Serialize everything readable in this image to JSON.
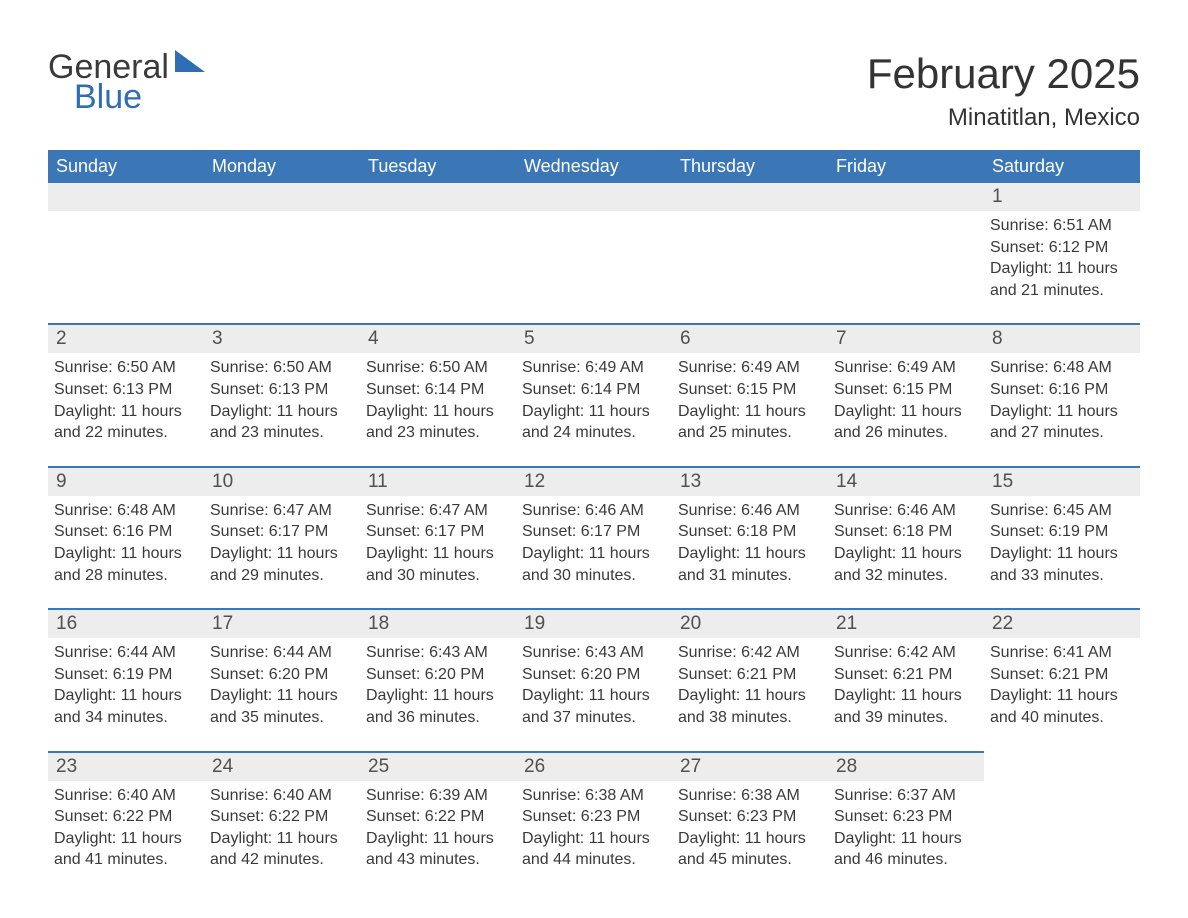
{
  "brand": {
    "word1": "General",
    "word2": "Blue",
    "tri_color": "#2f6eb5"
  },
  "title": {
    "month": "February 2025",
    "location": "Minatitlan, Mexico"
  },
  "colors": {
    "header_bg": "#3b77b7",
    "header_text": "#ffffff",
    "rule": "#3b77b7",
    "daynum_bg": "#ededed",
    "body_text": "#3a3a3a",
    "page_bg": "#ffffff"
  },
  "typography": {
    "month_title_size": 42,
    "location_size": 24,
    "dow_size": 18,
    "daynum_size": 19,
    "detail_size": 16,
    "logo_size": 34
  },
  "dow": [
    "Sunday",
    "Monday",
    "Tuesday",
    "Wednesday",
    "Thursday",
    "Friday",
    "Saturday"
  ],
  "weeks": [
    [
      null,
      null,
      null,
      null,
      null,
      null,
      {
        "n": "1",
        "sr": "Sunrise: 6:51 AM",
        "ss": "Sunset: 6:12 PM",
        "dl1": "Daylight: 11 hours",
        "dl2": "and 21 minutes."
      }
    ],
    [
      {
        "n": "2",
        "sr": "Sunrise: 6:50 AM",
        "ss": "Sunset: 6:13 PM",
        "dl1": "Daylight: 11 hours",
        "dl2": "and 22 minutes."
      },
      {
        "n": "3",
        "sr": "Sunrise: 6:50 AM",
        "ss": "Sunset: 6:13 PM",
        "dl1": "Daylight: 11 hours",
        "dl2": "and 23 minutes."
      },
      {
        "n": "4",
        "sr": "Sunrise: 6:50 AM",
        "ss": "Sunset: 6:14 PM",
        "dl1": "Daylight: 11 hours",
        "dl2": "and 23 minutes."
      },
      {
        "n": "5",
        "sr": "Sunrise: 6:49 AM",
        "ss": "Sunset: 6:14 PM",
        "dl1": "Daylight: 11 hours",
        "dl2": "and 24 minutes."
      },
      {
        "n": "6",
        "sr": "Sunrise: 6:49 AM",
        "ss": "Sunset: 6:15 PM",
        "dl1": "Daylight: 11 hours",
        "dl2": "and 25 minutes."
      },
      {
        "n": "7",
        "sr": "Sunrise: 6:49 AM",
        "ss": "Sunset: 6:15 PM",
        "dl1": "Daylight: 11 hours",
        "dl2": "and 26 minutes."
      },
      {
        "n": "8",
        "sr": "Sunrise: 6:48 AM",
        "ss": "Sunset: 6:16 PM",
        "dl1": "Daylight: 11 hours",
        "dl2": "and 27 minutes."
      }
    ],
    [
      {
        "n": "9",
        "sr": "Sunrise: 6:48 AM",
        "ss": "Sunset: 6:16 PM",
        "dl1": "Daylight: 11 hours",
        "dl2": "and 28 minutes."
      },
      {
        "n": "10",
        "sr": "Sunrise: 6:47 AM",
        "ss": "Sunset: 6:17 PM",
        "dl1": "Daylight: 11 hours",
        "dl2": "and 29 minutes."
      },
      {
        "n": "11",
        "sr": "Sunrise: 6:47 AM",
        "ss": "Sunset: 6:17 PM",
        "dl1": "Daylight: 11 hours",
        "dl2": "and 30 minutes."
      },
      {
        "n": "12",
        "sr": "Sunrise: 6:46 AM",
        "ss": "Sunset: 6:17 PM",
        "dl1": "Daylight: 11 hours",
        "dl2": "and 30 minutes."
      },
      {
        "n": "13",
        "sr": "Sunrise: 6:46 AM",
        "ss": "Sunset: 6:18 PM",
        "dl1": "Daylight: 11 hours",
        "dl2": "and 31 minutes."
      },
      {
        "n": "14",
        "sr": "Sunrise: 6:46 AM",
        "ss": "Sunset: 6:18 PM",
        "dl1": "Daylight: 11 hours",
        "dl2": "and 32 minutes."
      },
      {
        "n": "15",
        "sr": "Sunrise: 6:45 AM",
        "ss": "Sunset: 6:19 PM",
        "dl1": "Daylight: 11 hours",
        "dl2": "and 33 minutes."
      }
    ],
    [
      {
        "n": "16",
        "sr": "Sunrise: 6:44 AM",
        "ss": "Sunset: 6:19 PM",
        "dl1": "Daylight: 11 hours",
        "dl2": "and 34 minutes."
      },
      {
        "n": "17",
        "sr": "Sunrise: 6:44 AM",
        "ss": "Sunset: 6:20 PM",
        "dl1": "Daylight: 11 hours",
        "dl2": "and 35 minutes."
      },
      {
        "n": "18",
        "sr": "Sunrise: 6:43 AM",
        "ss": "Sunset: 6:20 PM",
        "dl1": "Daylight: 11 hours",
        "dl2": "and 36 minutes."
      },
      {
        "n": "19",
        "sr": "Sunrise: 6:43 AM",
        "ss": "Sunset: 6:20 PM",
        "dl1": "Daylight: 11 hours",
        "dl2": "and 37 minutes."
      },
      {
        "n": "20",
        "sr": "Sunrise: 6:42 AM",
        "ss": "Sunset: 6:21 PM",
        "dl1": "Daylight: 11 hours",
        "dl2": "and 38 minutes."
      },
      {
        "n": "21",
        "sr": "Sunrise: 6:42 AM",
        "ss": "Sunset: 6:21 PM",
        "dl1": "Daylight: 11 hours",
        "dl2": "and 39 minutes."
      },
      {
        "n": "22",
        "sr": "Sunrise: 6:41 AM",
        "ss": "Sunset: 6:21 PM",
        "dl1": "Daylight: 11 hours",
        "dl2": "and 40 minutes."
      }
    ],
    [
      {
        "n": "23",
        "sr": "Sunrise: 6:40 AM",
        "ss": "Sunset: 6:22 PM",
        "dl1": "Daylight: 11 hours",
        "dl2": "and 41 minutes."
      },
      {
        "n": "24",
        "sr": "Sunrise: 6:40 AM",
        "ss": "Sunset: 6:22 PM",
        "dl1": "Daylight: 11 hours",
        "dl2": "and 42 minutes."
      },
      {
        "n": "25",
        "sr": "Sunrise: 6:39 AM",
        "ss": "Sunset: 6:22 PM",
        "dl1": "Daylight: 11 hours",
        "dl2": "and 43 minutes."
      },
      {
        "n": "26",
        "sr": "Sunrise: 6:38 AM",
        "ss": "Sunset: 6:23 PM",
        "dl1": "Daylight: 11 hours",
        "dl2": "and 44 minutes."
      },
      {
        "n": "27",
        "sr": "Sunrise: 6:38 AM",
        "ss": "Sunset: 6:23 PM",
        "dl1": "Daylight: 11 hours",
        "dl2": "and 45 minutes."
      },
      {
        "n": "28",
        "sr": "Sunrise: 6:37 AM",
        "ss": "Sunset: 6:23 PM",
        "dl1": "Daylight: 11 hours",
        "dl2": "and 46 minutes."
      },
      null
    ]
  ]
}
